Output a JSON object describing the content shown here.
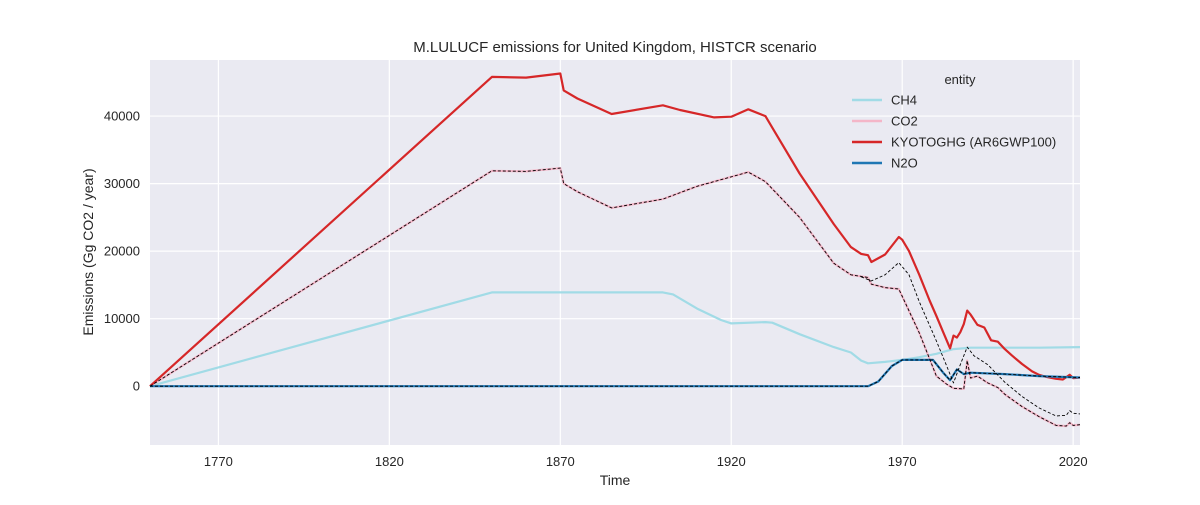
{
  "chart_data": {
    "type": "line",
    "title": "M.LULUCF emissions for United Kingdom, HISTCR scenario",
    "xlabel": "Time",
    "ylabel": "Emissions (Gg CO2 / year)",
    "xlim": [
      1750,
      2022
    ],
    "ylim": [
      -8700,
      48300
    ],
    "xticks": [
      1770,
      1820,
      1870,
      1920,
      1970,
      2020
    ],
    "yticks": [
      0,
      10000,
      20000,
      30000,
      40000
    ],
    "ytick_labels": [
      "0",
      "10000",
      "20000",
      "30000",
      "40000"
    ],
    "grid": true,
    "legend": {
      "title": "entity",
      "placement": "top-right",
      "entries": [
        "CH4",
        "CO2",
        "KYOTOGHG (AR6GWP100)",
        "N2O"
      ]
    },
    "series": [
      {
        "name": "CH4",
        "color": "#a1dbe6",
        "style": "solid",
        "points": [
          [
            1750,
            0
          ],
          [
            1850,
            13900
          ],
          [
            1900,
            13900
          ],
          [
            1903,
            13600
          ],
          [
            1910,
            11500
          ],
          [
            1917,
            9800
          ],
          [
            1920,
            9300
          ],
          [
            1930,
            9500
          ],
          [
            1932,
            9400
          ],
          [
            1940,
            7700
          ],
          [
            1950,
            5800
          ],
          [
            1955,
            5000
          ],
          [
            1958,
            3800
          ],
          [
            1960,
            3400
          ],
          [
            1965,
            3600
          ],
          [
            1970,
            3900
          ],
          [
            1975,
            4300
          ],
          [
            1980,
            4800
          ],
          [
            1985,
            5500
          ],
          [
            1990,
            5700
          ],
          [
            2000,
            5700
          ],
          [
            2010,
            5700
          ],
          [
            2022,
            5800
          ]
        ]
      },
      {
        "name": "CO2",
        "color": "#f4b6c8",
        "style": "solid",
        "points": [
          [
            1750,
            0
          ],
          [
            1850,
            31900
          ],
          [
            1860,
            31800
          ],
          [
            1870,
            32300
          ],
          [
            1871,
            30000
          ],
          [
            1875,
            28800
          ],
          [
            1885,
            26400
          ],
          [
            1900,
            27700
          ],
          [
            1910,
            29600
          ],
          [
            1925,
            31700
          ],
          [
            1930,
            30300
          ],
          [
            1940,
            25000
          ],
          [
            1950,
            18200
          ],
          [
            1955,
            16500
          ],
          [
            1960,
            16100
          ],
          [
            1961,
            15100
          ],
          [
            1965,
            14600
          ],
          [
            1969,
            14400
          ],
          [
            1975,
            7900
          ],
          [
            1980,
            1500
          ],
          [
            1983,
            300
          ],
          [
            1985,
            -300
          ],
          [
            1988,
            -400
          ],
          [
            1989,
            3800
          ],
          [
            1990,
            1200
          ],
          [
            1992,
            1500
          ],
          [
            1995,
            500
          ],
          [
            1998,
            -200
          ],
          [
            2000,
            -1200
          ],
          [
            2005,
            -3000
          ],
          [
            2010,
            -4500
          ],
          [
            2015,
            -5800
          ],
          [
            2018,
            -5900
          ],
          [
            2019,
            -5400
          ],
          [
            2020,
            -5800
          ],
          [
            2022,
            -5700
          ]
        ]
      },
      {
        "name": "KYOTOGHG (AR6GWP100)",
        "color": "#d62728",
        "style": "solid",
        "points": [
          [
            1750,
            0
          ],
          [
            1850,
            45800
          ],
          [
            1860,
            45700
          ],
          [
            1870,
            46300
          ],
          [
            1871,
            43800
          ],
          [
            1875,
            42600
          ],
          [
            1885,
            40300
          ],
          [
            1900,
            41600
          ],
          [
            1905,
            40900
          ],
          [
            1915,
            39800
          ],
          [
            1920,
            39900
          ],
          [
            1925,
            41000
          ],
          [
            1930,
            40000
          ],
          [
            1940,
            31500
          ],
          [
            1950,
            24000
          ],
          [
            1955,
            20600
          ],
          [
            1958,
            19600
          ],
          [
            1960,
            19400
          ],
          [
            1961,
            18400
          ],
          [
            1965,
            19500
          ],
          [
            1969,
            22100
          ],
          [
            1970,
            21700
          ],
          [
            1972,
            20000
          ],
          [
            1975,
            16500
          ],
          [
            1978,
            12700
          ],
          [
            1980,
            10400
          ],
          [
            1982,
            8000
          ],
          [
            1984,
            5600
          ],
          [
            1985,
            7500
          ],
          [
            1986,
            7200
          ],
          [
            1987,
            8000
          ],
          [
            1988,
            9200
          ],
          [
            1989,
            11200
          ],
          [
            1990,
            10600
          ],
          [
            1992,
            9100
          ],
          [
            1994,
            8700
          ],
          [
            1996,
            6800
          ],
          [
            1998,
            6600
          ],
          [
            2000,
            5500
          ],
          [
            2002,
            4600
          ],
          [
            2005,
            3300
          ],
          [
            2008,
            2200
          ],
          [
            2010,
            1700
          ],
          [
            2012,
            1400
          ],
          [
            2015,
            1100
          ],
          [
            2017,
            1000
          ],
          [
            2019,
            1700
          ],
          [
            2020,
            1200
          ],
          [
            2022,
            1300
          ]
        ]
      },
      {
        "name": "N2O",
        "color": "#1f77b4",
        "style": "solid",
        "points": [
          [
            1750,
            0
          ],
          [
            1958,
            0
          ],
          [
            1960,
            0
          ],
          [
            1963,
            700
          ],
          [
            1967,
            3000
          ],
          [
            1970,
            3900
          ],
          [
            1979,
            3900
          ],
          [
            1982,
            2000
          ],
          [
            1984,
            900
          ],
          [
            1986,
            2500
          ],
          [
            1988,
            1800
          ],
          [
            1990,
            2000
          ],
          [
            2000,
            1800
          ],
          [
            2010,
            1500
          ],
          [
            2022,
            1300
          ]
        ]
      },
      {
        "name": "",
        "color": "#000000",
        "style": "dashed",
        "points": [
          [
            1750,
            0
          ],
          [
            1850,
            31900
          ],
          [
            1860,
            31800
          ],
          [
            1870,
            32300
          ],
          [
            1871,
            30000
          ],
          [
            1875,
            28800
          ],
          [
            1885,
            26400
          ],
          [
            1900,
            27700
          ],
          [
            1910,
            29600
          ],
          [
            1925,
            31700
          ],
          [
            1930,
            30300
          ],
          [
            1940,
            25000
          ],
          [
            1950,
            18200
          ],
          [
            1955,
            16500
          ],
          [
            1960,
            16100
          ],
          [
            1961,
            15100
          ],
          [
            1965,
            14600
          ],
          [
            1969,
            14400
          ],
          [
            1975,
            7900
          ],
          [
            1980,
            1500
          ],
          [
            1983,
            300
          ],
          [
            1985,
            -300
          ],
          [
            1988,
            -400
          ],
          [
            1989,
            3800
          ],
          [
            1990,
            1200
          ],
          [
            1992,
            1500
          ],
          [
            1995,
            500
          ],
          [
            1998,
            -200
          ],
          [
            2000,
            -1200
          ],
          [
            2005,
            -3000
          ],
          [
            2010,
            -4500
          ],
          [
            2015,
            -5800
          ],
          [
            2018,
            -5900
          ],
          [
            2019,
            -5400
          ],
          [
            2020,
            -5800
          ],
          [
            2022,
            -5700
          ]
        ]
      },
      {
        "name": "",
        "color": "#000000",
        "style": "dashed",
        "points": [
          [
            1750,
            0
          ],
          [
            1958,
            0
          ],
          [
            1960,
            0
          ],
          [
            1963,
            700
          ],
          [
            1967,
            3000
          ],
          [
            1970,
            3900
          ],
          [
            1979,
            3900
          ],
          [
            1982,
            2000
          ],
          [
            1984,
            900
          ],
          [
            1986,
            2500
          ],
          [
            1988,
            1800
          ],
          [
            1990,
            2000
          ],
          [
            2000,
            1800
          ],
          [
            2010,
            1500
          ],
          [
            2022,
            1300
          ]
        ]
      },
      {
        "name": "",
        "color": "#000000",
        "style": "dashed",
        "points": [
          [
            1958,
            16200
          ],
          [
            1961,
            15600
          ],
          [
            1965,
            16500
          ],
          [
            1969,
            18300
          ],
          [
            1972,
            16500
          ],
          [
            1975,
            12500
          ],
          [
            1980,
            6700
          ],
          [
            1983,
            3000
          ],
          [
            1985,
            500
          ],
          [
            1987,
            3200
          ],
          [
            1989,
            5800
          ],
          [
            1991,
            4500
          ],
          [
            1995,
            3200
          ],
          [
            2000,
            600
          ],
          [
            2005,
            -1500
          ],
          [
            2010,
            -3200
          ],
          [
            2015,
            -4400
          ],
          [
            2018,
            -4300
          ],
          [
            2019,
            -3600
          ],
          [
            2020,
            -4000
          ],
          [
            2022,
            -4100
          ]
        ]
      }
    ]
  }
}
